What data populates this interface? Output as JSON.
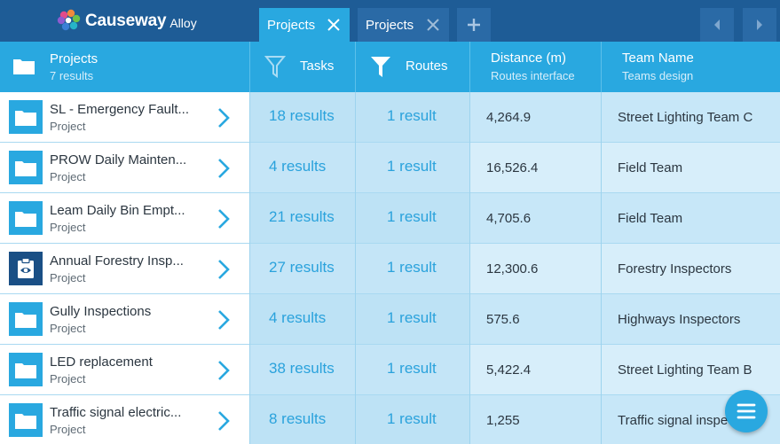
{
  "app": {
    "brand": "Causeway",
    "product": "Alloy",
    "colors": {
      "topbar": "#1e5c96",
      "accent": "#29a8e0"
    }
  },
  "tabs": [
    {
      "label": "Projects",
      "active": true,
      "icon": "close-icon"
    },
    {
      "label": "Projects",
      "active": false,
      "icon": "close-icon"
    }
  ],
  "toolbar": {
    "add_icon": "plus-icon",
    "prev_icon": "chevron-left-icon",
    "next_icon": "chevron-right-icon"
  },
  "header": {
    "projects": {
      "title": "Projects",
      "subtitle": "7 results"
    },
    "tasks": {
      "label": "Tasks",
      "icon": "filter-outline-icon"
    },
    "routes": {
      "label": "Routes",
      "icon": "filter-solid-icon"
    },
    "distance": {
      "title": "Distance (m)",
      "subtitle": "Routes interface"
    },
    "team": {
      "title": "Team Name",
      "subtitle": "Teams design"
    }
  },
  "rows": [
    {
      "name": "SL - Emergency Fault...",
      "type": "Project",
      "icon": "folder-icon",
      "tasks": "18 results",
      "routes": "1 result",
      "distance": "4,264.9",
      "team": "Street Lighting Team C"
    },
    {
      "name": "PROW Daily Mainten...",
      "type": "Project",
      "icon": "folder-icon",
      "tasks": "4 results",
      "routes": "1 result",
      "distance": "16,526.4",
      "team": "Field Team"
    },
    {
      "name": "Leam Daily Bin Empt...",
      "type": "Project",
      "icon": "folder-icon",
      "tasks": "21 results",
      "routes": "1 result",
      "distance": "4,705.6",
      "team": "Field Team"
    },
    {
      "name": "Annual Forestry Insp...",
      "type": "Project",
      "icon": "inspection-clipboard-icon",
      "tasks": "27 results",
      "routes": "1 result",
      "distance": "12,300.6",
      "team": "Forestry Inspectors"
    },
    {
      "name": "Gully Inspections",
      "type": "Project",
      "icon": "folder-icon",
      "tasks": "4 results",
      "routes": "1 result",
      "distance": "575.6",
      "team": "Highways Inspectors"
    },
    {
      "name": "LED replacement",
      "type": "Project",
      "icon": "folder-icon",
      "tasks": "38 results",
      "routes": "1 result",
      "distance": "5,422.4",
      "team": "Street Lighting Team B"
    },
    {
      "name": "Traffic signal electric...",
      "type": "Project",
      "icon": "folder-icon",
      "tasks": "8 results",
      "routes": "1 result",
      "distance": "1,255",
      "team": "Traffic signal inspe"
    }
  ],
  "fab": {
    "icon": "menu-icon"
  }
}
